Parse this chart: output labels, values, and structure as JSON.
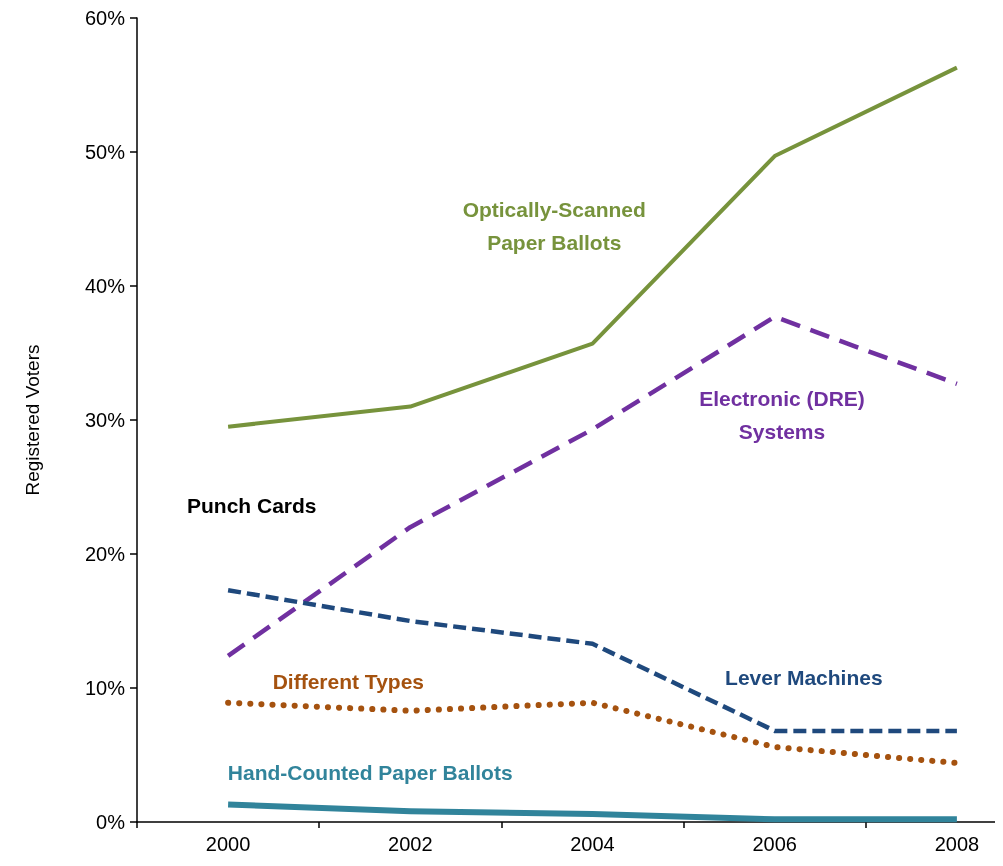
{
  "chart_data": {
    "type": "line",
    "ylabel": "Registered Voters",
    "categories": [
      "2000",
      "2002",
      "2004",
      "2006",
      "2008"
    ],
    "ylim": [
      0,
      60
    ],
    "yticks": [
      {
        "value": 0,
        "label": "0%"
      },
      {
        "value": 10,
        "label": "10%"
      },
      {
        "value": 20,
        "label": "20%"
      },
      {
        "value": 30,
        "label": "30%"
      },
      {
        "value": 40,
        "label": "40%"
      },
      {
        "value": 50,
        "label": "50%"
      },
      {
        "value": 60,
        "label": "60%"
      }
    ],
    "grid": false,
    "legend": false,
    "marker": "none",
    "annotations": [
      "Punch Cards"
    ],
    "series": [
      {
        "name": "Optically-Scanned\nPaper Ballots",
        "color": "#77933c",
        "line_style": "solid",
        "values": [
          29.5,
          31,
          35.7,
          49.7,
          56.3
        ]
      },
      {
        "name": "Electronic (DRE)\nSystems",
        "color": "#7030a0",
        "line_style": "dashed",
        "values": [
          12.4,
          22,
          29.3,
          37.7,
          32.7
        ]
      },
      {
        "name": "Lever Machines",
        "color": "#1f497d",
        "line_style": "dashed",
        "values": [
          17.3,
          15,
          13.3,
          6.8,
          6.8
        ]
      },
      {
        "name": "Different Types",
        "color": "#a5520f",
        "line_style": "dotted",
        "values": [
          8.9,
          8.3,
          8.9,
          5.6,
          4.4
        ]
      },
      {
        "name": "Hand-Counted Paper Ballots",
        "color": "#31849b",
        "line_style": "solid",
        "values": [
          1.3,
          0.8,
          0.6,
          0.2,
          0.2
        ]
      }
    ]
  }
}
